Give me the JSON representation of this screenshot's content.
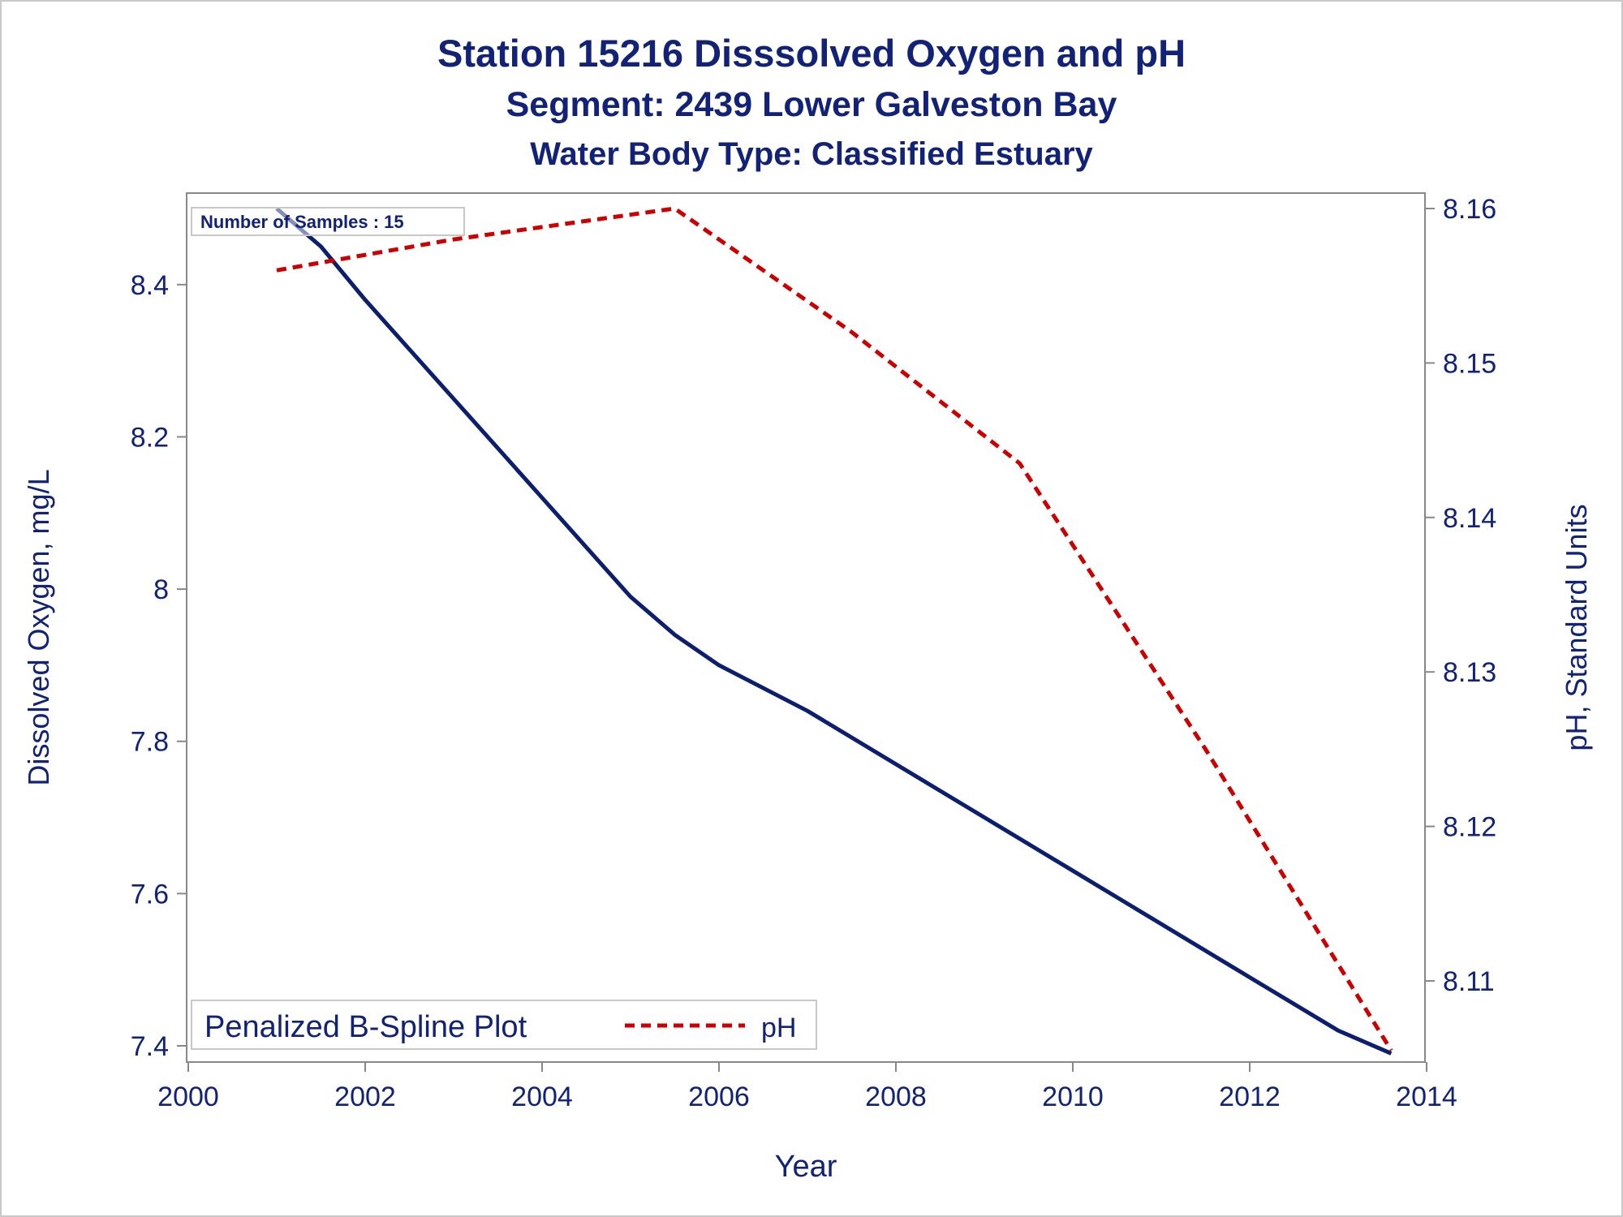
{
  "titles": {
    "line1": "Station 15216   Disssolved Oxygen and pH",
    "line2": "Segment: 2439  Lower Galveston Bay",
    "line3": "Water Body Type: Classified Estuary"
  },
  "inset_label": "Number of Samples : 15",
  "legend": {
    "series1_label": "Penalized B-Spline Plot",
    "series2_label": "pH"
  },
  "colors": {
    "text": "#112277",
    "do_line": "#0b1f6e",
    "ph_line": "#cc0000",
    "axis": "#888888"
  },
  "chart_data": {
    "type": "line",
    "xlabel": "Year",
    "ylabel": "Dissolved Oxygen, mg/L",
    "y2label": "pH, Standard Units",
    "xlim": [
      2000,
      2014
    ],
    "ylim": [
      7.38,
      8.5
    ],
    "y2lim": [
      8.105,
      8.16
    ],
    "x_ticks": [
      "2000",
      "2002",
      "2004",
      "2006",
      "2008",
      "2010",
      "2012",
      "2014"
    ],
    "y_ticks": [
      "7.4",
      "7.6",
      "7.8",
      "8",
      "8.2",
      "8.4"
    ],
    "y2_ticks": [
      "8.11",
      "8.12",
      "8.13",
      "8.14",
      "8.15",
      "8.16"
    ],
    "grid": false,
    "legend_position": "bottom-left inside",
    "series": [
      {
        "name": "Penalized B-Spline Plot",
        "axis": "left",
        "x": [
          2001.0,
          2001.5,
          2002.0,
          2003.0,
          2004.0,
          2005.0,
          2005.5,
          2006.0,
          2007.0,
          2008.0,
          2009.0,
          2010.0,
          2011.0,
          2012.0,
          2013.0,
          2013.6
        ],
        "y": [
          8.5,
          8.45,
          8.38,
          8.25,
          8.12,
          7.99,
          7.94,
          7.9,
          7.84,
          7.77,
          7.7,
          7.63,
          7.56,
          7.49,
          7.42,
          7.39
        ]
      },
      {
        "name": "pH",
        "axis": "right",
        "x": [
          2001.0,
          2003.0,
          2005.5,
          2007.5,
          2009.4,
          2011.5,
          2013.6
        ],
        "y": [
          8.156,
          8.158,
          8.16,
          8.152,
          8.1435,
          8.125,
          8.1055
        ]
      }
    ]
  }
}
